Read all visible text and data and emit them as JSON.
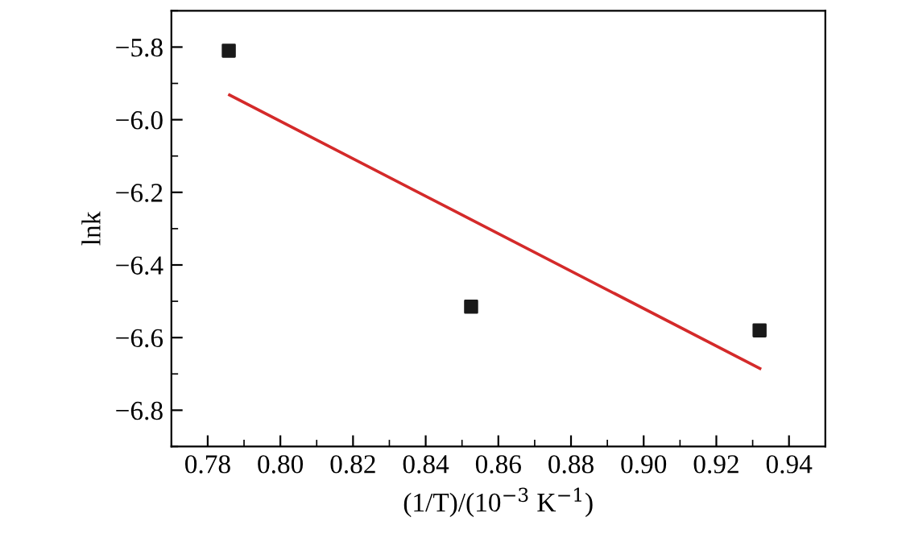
{
  "chart_data": {
    "type": "scatter",
    "xlabel": "(1/T)/(10$^{−3}$ K$^{−1}$)",
    "ylabel": "lnk",
    "series": [
      {
        "color": "#1a1a1a",
        "marker": "square",
        "x": [
          0.7858,
          0.8525,
          0.9319
        ],
        "values": [
          -5.81,
          -6.515,
          -6.58
        ]
      },
      {
        "type": "line",
        "color": "#d42a2a",
        "marker": "none",
        "line_style": "solid",
        "x": [
          0.786,
          0.932
        ],
        "values": [
          -5.932,
          -6.685
        ]
      }
    ],
    "xlim": [
      0.77,
      0.95
    ],
    "ylim": [
      -6.9,
      -5.7
    ],
    "xticks": [
      0.78,
      {
        "value": 0.8,
        "label": "0.80"
      },
      0.82,
      0.84,
      0.86,
      0.88,
      {
        "value": 0.9,
        "label": "0.90"
      },
      0.92,
      0.94
    ],
    "yticks": [
      {
        "value": -5.8,
        "label": "−5.8"
      },
      {
        "value": -6.0,
        "label": "−6.0"
      },
      {
        "value": -6.2,
        "label": "−6.2"
      },
      {
        "value": -6.4,
        "label": "−6.4"
      },
      {
        "value": -6.6,
        "label": "−6.6"
      },
      {
        "value": -6.8,
        "label": "−6.8"
      }
    ],
    "grid": false,
    "legend": false
  }
}
